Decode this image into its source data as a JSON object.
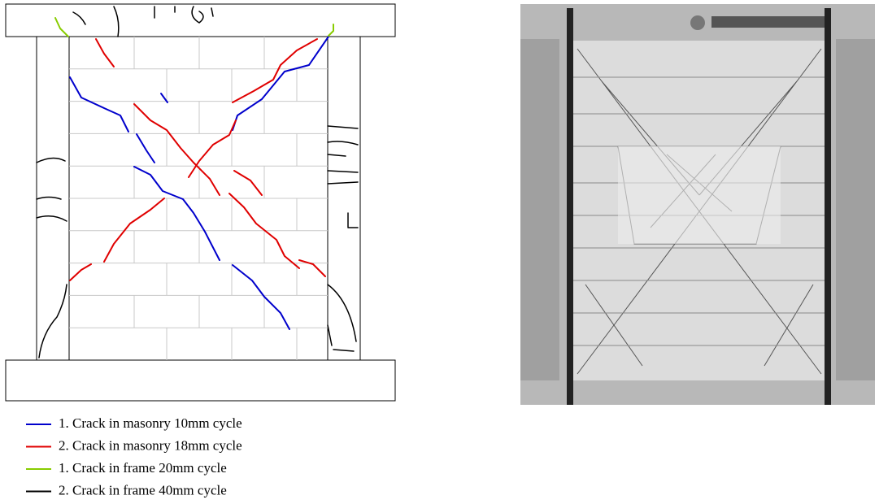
{
  "legend": [
    {
      "label": "1. Crack in masonry 10mm cycle",
      "color": "#0000cc"
    },
    {
      "label": "2. Crack in masonry 18mm cycle",
      "color": "#e00000"
    },
    {
      "label": "1. Crack in frame 20mm cycle",
      "color": "#88cc00"
    },
    {
      "label": "2. Crack in frame 40mm cycle",
      "color": "#000000"
    }
  ]
}
